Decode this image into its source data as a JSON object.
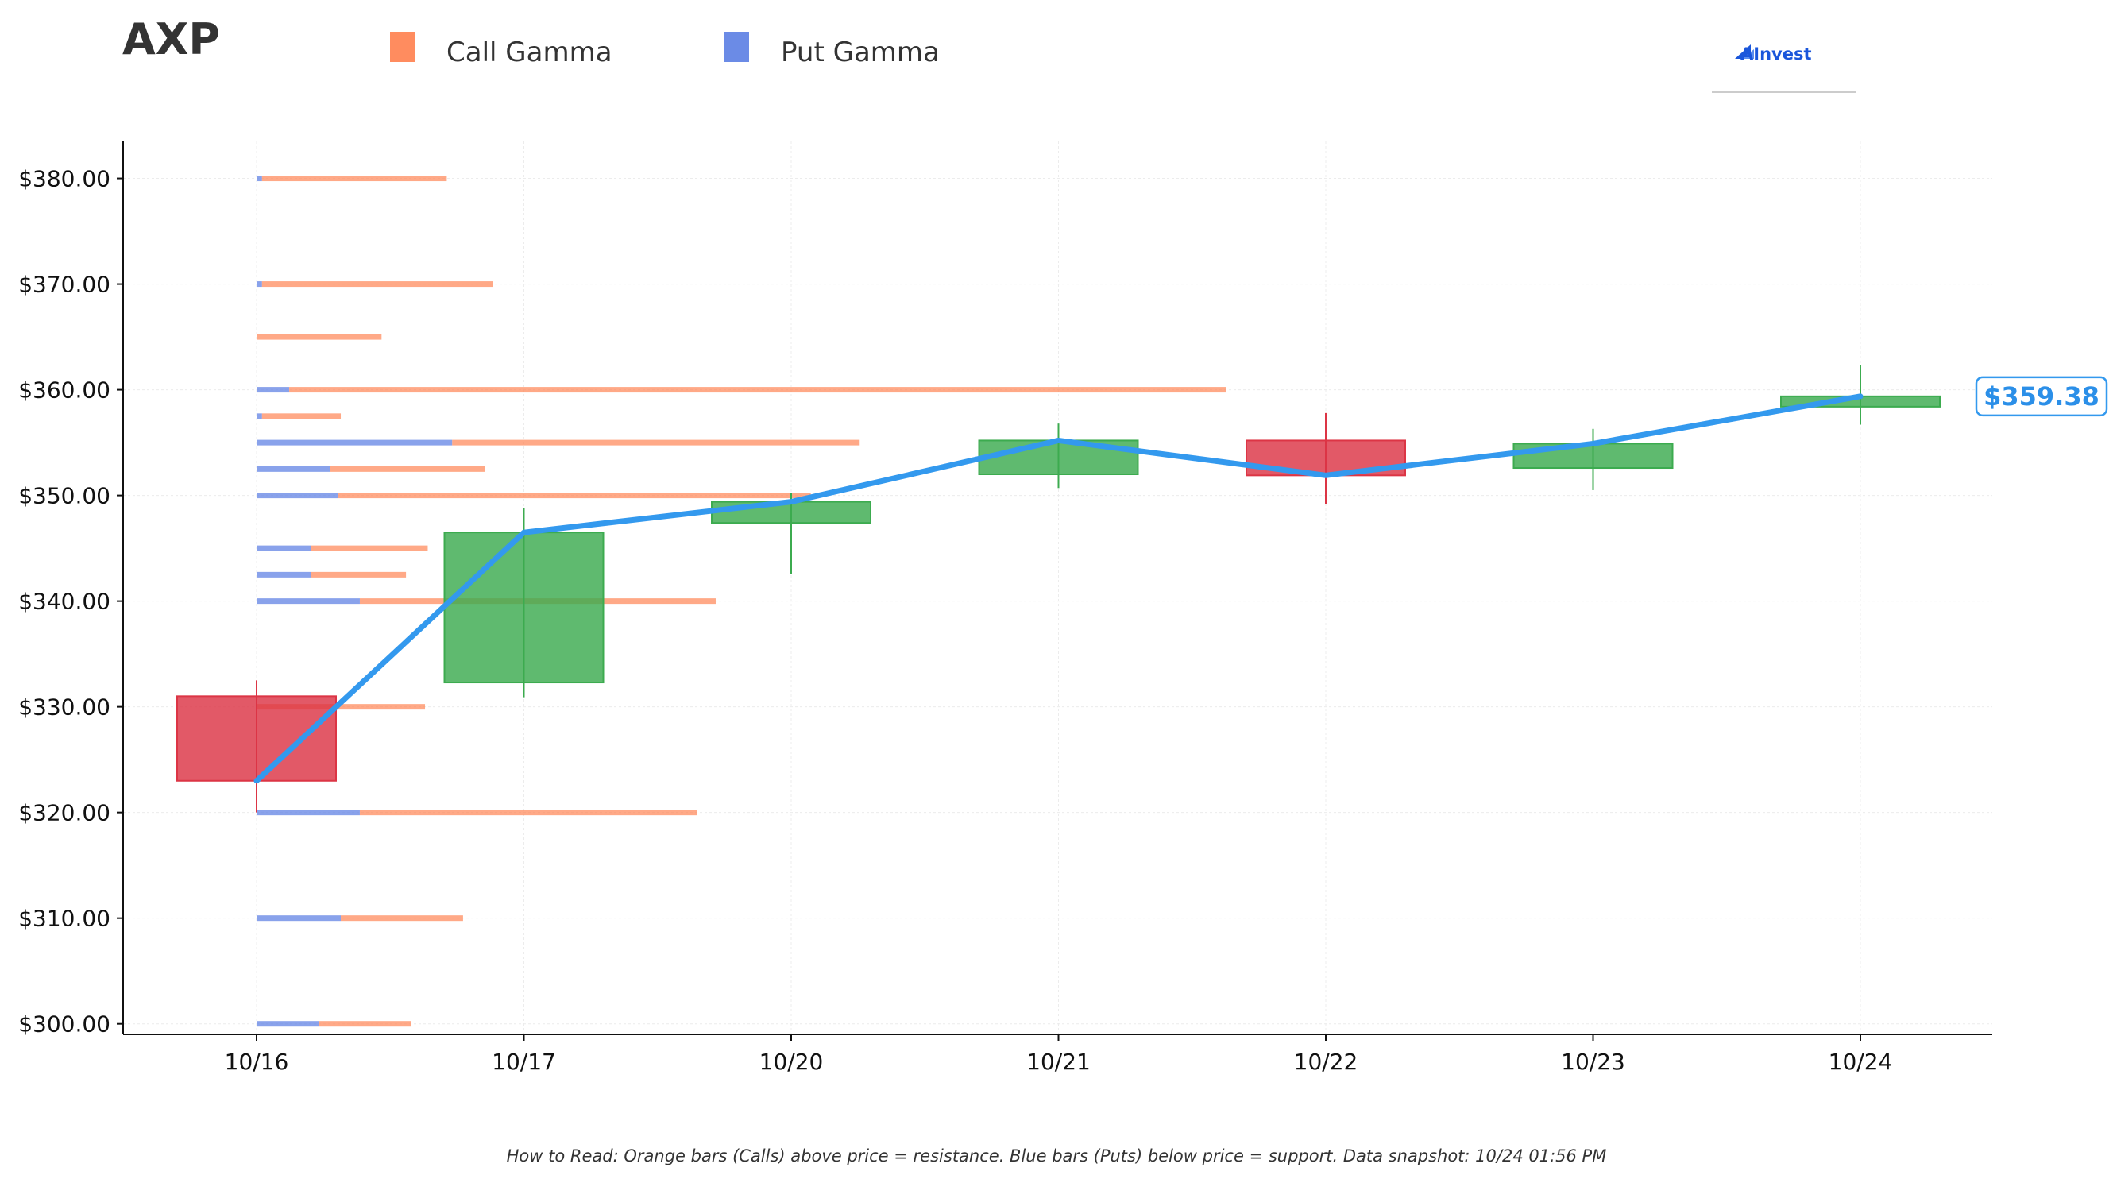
{
  "header": {
    "ticker": "AXP",
    "legend": [
      {
        "label": "Call Gamma",
        "color": "#ff8c5f"
      },
      {
        "label": "Put Gamma",
        "color": "#6b8be6"
      }
    ],
    "logo_text": "AInvest"
  },
  "footnote": "How to Read: Orange bars (Calls) above price = resistance. Blue bars (Puts) below price = support. Data snapshot: 10/24 01:56 PM",
  "current_price_label": "$359.38",
  "chart_data": {
    "type": "candlestick",
    "ylim": [
      299,
      383.5
    ],
    "yticks": [
      300,
      310,
      320,
      330,
      340,
      350,
      360,
      370,
      380
    ],
    "ytick_labels": [
      "$300.00",
      "$310.00",
      "$320.00",
      "$330.00",
      "$340.00",
      "$350.00",
      "$360.00",
      "$370.00",
      "$380.00"
    ],
    "categories": [
      "10/16",
      "10/17",
      "10/20",
      "10/21",
      "10/22",
      "10/23",
      "10/24"
    ],
    "candles": [
      {
        "date": "10/16",
        "open": 331.0,
        "high": 332.5,
        "low": 320.0,
        "close": 323.0
      },
      {
        "date": "10/17",
        "open": 332.3,
        "high": 348.8,
        "low": 330.9,
        "close": 346.5
      },
      {
        "date": "10/20",
        "open": 347.4,
        "high": 350.2,
        "low": 342.6,
        "close": 349.4
      },
      {
        "date": "10/21",
        "open": 352.0,
        "high": 356.8,
        "low": 350.7,
        "close": 355.2
      },
      {
        "date": "10/22",
        "open": 355.2,
        "high": 357.8,
        "low": 349.2,
        "close": 351.9
      },
      {
        "date": "10/23",
        "open": 352.6,
        "high": 356.3,
        "low": 350.5,
        "close": 354.9
      },
      {
        "date": "10/24",
        "open": 358.4,
        "high": 362.3,
        "low": 356.7,
        "close": 359.38
      }
    ],
    "close_line": [
      323.0,
      346.5,
      349.4,
      355.2,
      351.9,
      354.9,
      359.38
    ],
    "gamma_bars": [
      {
        "strike": 380.0,
        "put": 0.02,
        "call": 0.68
      },
      {
        "strike": 370.0,
        "put": 0.02,
        "call": 0.85
      },
      {
        "strike": 365.0,
        "put": 0.0,
        "call": 0.46
      },
      {
        "strike": 360.0,
        "put": 0.12,
        "call": 3.45
      },
      {
        "strike": 357.5,
        "put": 0.02,
        "call": 0.29
      },
      {
        "strike": 355.0,
        "put": 0.72,
        "call": 1.5
      },
      {
        "strike": 352.5,
        "put": 0.27,
        "call": 0.57
      },
      {
        "strike": 350.0,
        "put": 0.3,
        "call": 1.74
      },
      {
        "strike": 345.0,
        "put": 0.2,
        "call": 0.43
      },
      {
        "strike": 342.5,
        "put": 0.2,
        "call": 0.35
      },
      {
        "strike": 340.0,
        "put": 0.38,
        "call": 1.31
      },
      {
        "strike": 330.0,
        "put": 0.0,
        "call": 0.62
      },
      {
        "strike": 320.0,
        "put": 0.38,
        "call": 1.24
      },
      {
        "strike": 310.0,
        "put": 0.31,
        "call": 0.45
      },
      {
        "strike": 300.0,
        "put": 0.23,
        "call": 0.34
      }
    ],
    "colors": {
      "up": "#3cab4f",
      "down": "#dc3545",
      "close_line": "#3399ee",
      "call": "#ff8c5f",
      "put": "#6b8be6"
    },
    "grid": true
  }
}
